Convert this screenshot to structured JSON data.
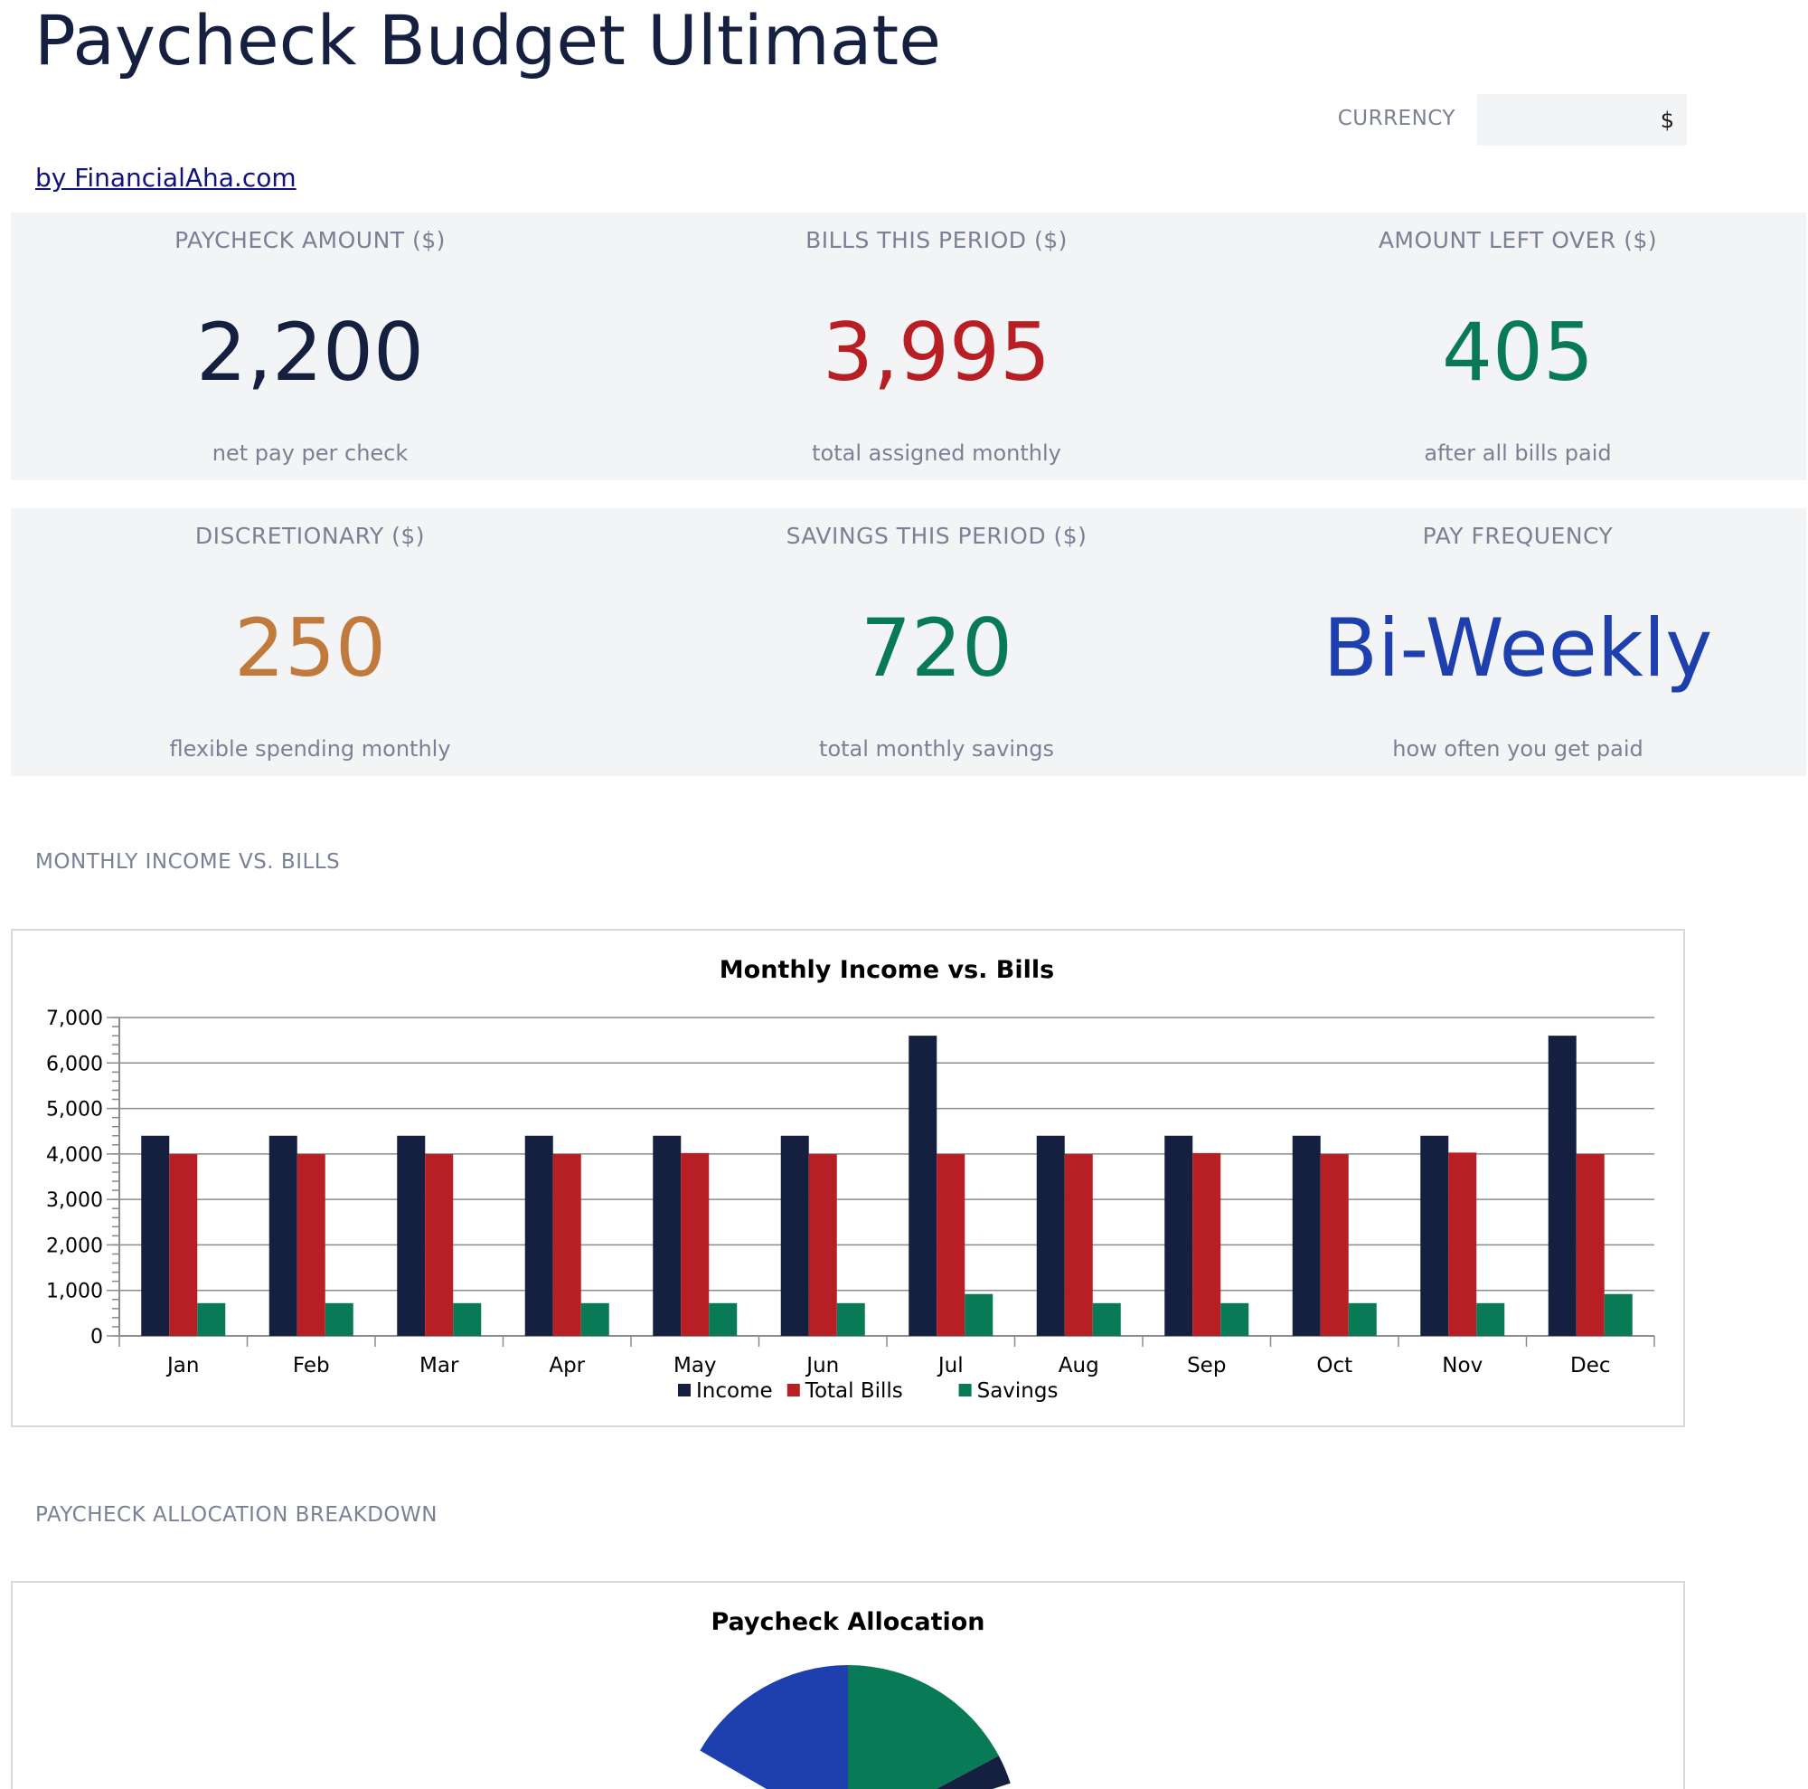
{
  "header": {
    "title": "Paycheck Budget Ultimate",
    "byline": "by FinancialAha.com",
    "currency_label": "CURRENCY",
    "currency_value": "$"
  },
  "kpis": [
    {
      "label": "PAYCHECK AMOUNT ($)",
      "value": "2,200",
      "sub": "net pay per check",
      "color": "#152041"
    },
    {
      "label": "BILLS THIS PERIOD ($)",
      "value": "3,995",
      "sub": "total assigned monthly",
      "color": "#b81f24"
    },
    {
      "label": "AMOUNT LEFT OVER ($)",
      "value": "405",
      "sub": "after all bills paid",
      "color": "#087a55"
    },
    {
      "label": "DISCRETIONARY ($)",
      "value": "250",
      "sub": "flexible spending monthly",
      "color": "#c07b3c"
    },
    {
      "label": "SAVINGS THIS PERIOD ($)",
      "value": "720",
      "sub": "total monthly savings",
      "color": "#087a55"
    },
    {
      "label": "PAY FREQUENCY",
      "value": "Bi-Weekly",
      "sub": "how often you get paid",
      "color": "#1e3fae"
    }
  ],
  "sections": {
    "income_vs_bills": "MONTHLY INCOME VS. BILLS",
    "allocation": "PAYCHECK ALLOCATION BREAKDOWN"
  },
  "chart_data": [
    {
      "type": "bar",
      "title": "Monthly Income vs. Bills",
      "categories": [
        "Jan",
        "Feb",
        "Mar",
        "Apr",
        "May",
        "Jun",
        "Jul",
        "Aug",
        "Sep",
        "Oct",
        "Nov",
        "Dec"
      ],
      "series": [
        {
          "name": "Income",
          "color": "#152041",
          "values": [
            4400,
            4400,
            4400,
            4400,
            4400,
            4400,
            6600,
            4400,
            4400,
            4400,
            4400,
            6600
          ]
        },
        {
          "name": "Total Bills",
          "color": "#b81f24",
          "values": [
            3995,
            3995,
            3995,
            3995,
            4020,
            3995,
            3995,
            3995,
            4020,
            3995,
            4030,
            3995
          ]
        },
        {
          "name": "Savings",
          "color": "#087a55",
          "values": [
            720,
            720,
            720,
            720,
            720,
            720,
            920,
            720,
            720,
            720,
            720,
            920
          ]
        }
      ],
      "ylim": [
        0,
        7000
      ],
      "yticks": [
        0,
        1000,
        2000,
        3000,
        4000,
        5000,
        6000,
        7000
      ],
      "ytick_labels": [
        "0",
        "1,000",
        "2,000",
        "3,000",
        "4,000",
        "5,000",
        "6,000",
        "7,000"
      ],
      "grid": true,
      "legend": "bottom"
    },
    {
      "type": "pie",
      "title": "Paycheck Allocation",
      "slice_colors": [
        "#1e3fae",
        "#087a55",
        "#152041"
      ]
    }
  ]
}
